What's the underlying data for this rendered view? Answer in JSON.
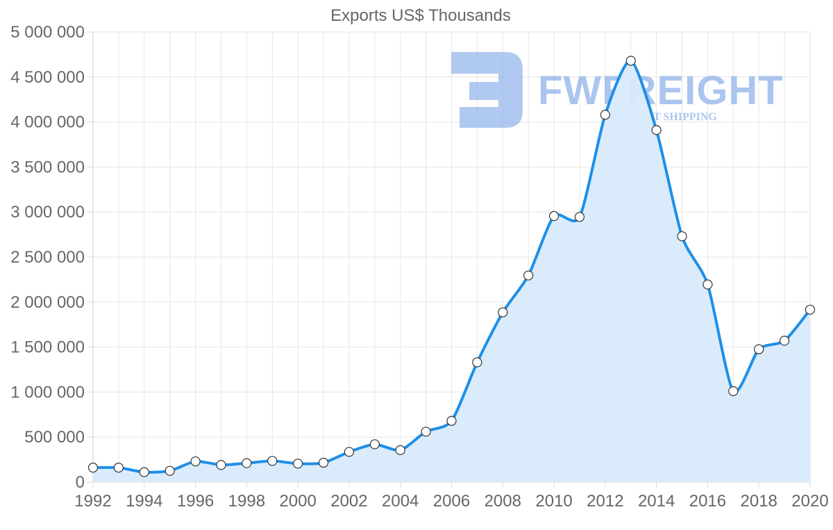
{
  "chart_data": {
    "type": "area",
    "title": "Exports US$ Thousands",
    "xlabel": "",
    "ylabel": "",
    "x": [
      1992,
      1993,
      1994,
      1995,
      1996,
      1997,
      1998,
      1999,
      2000,
      2001,
      2002,
      2003,
      2004,
      2005,
      2006,
      2007,
      2008,
      2009,
      2010,
      2011,
      2012,
      2013,
      2014,
      2015,
      2016,
      2017,
      2018,
      2019,
      2020
    ],
    "series": [
      {
        "name": "Exports US$ Thousands",
        "values": [
          160000,
          160000,
          110000,
          125000,
          230000,
          190000,
          210000,
          235000,
          205000,
          215000,
          335000,
          420000,
          355000,
          560000,
          680000,
          1330000,
          1885000,
          2295000,
          2955000,
          2945000,
          4080000,
          4680000,
          3910000,
          2730000,
          2195000,
          1010000,
          1475000,
          1570000,
          1915000
        ],
        "color": "#1e8fe8",
        "fill": "#d8ebfc"
      }
    ],
    "xlim": [
      1992,
      2020
    ],
    "ylim": [
      0,
      5000000
    ],
    "x_ticks": [
      "1992",
      "1994",
      "1996",
      "1998",
      "2000",
      "2002",
      "2004",
      "2006",
      "2008",
      "2010",
      "2012",
      "2014",
      "2016",
      "2018",
      "2020"
    ],
    "y_ticks": [
      "0",
      "500 000",
      "1 000 000",
      "1 500 000",
      "2 000 000",
      "2 500 000",
      "3 000 000",
      "3 500 000",
      "4 000 000",
      "4 500 000",
      "5 000 000"
    ],
    "grid": true,
    "legend": "none"
  },
  "watermark": {
    "name": "FWFREIGHT",
    "subtitle": "FREIGHT SHIPPING",
    "icon": "fwfreight-logo-icon"
  }
}
